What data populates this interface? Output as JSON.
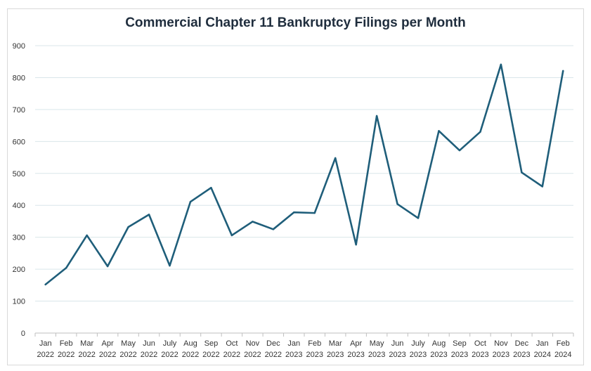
{
  "chart_data": {
    "type": "line",
    "title": "Commercial Chapter 11 Bankruptcy Filings per Month",
    "xlabel": "",
    "ylabel": "",
    "ylim": [
      0,
      900
    ],
    "yticks": [
      0,
      100,
      200,
      300,
      400,
      500,
      600,
      700,
      800,
      900
    ],
    "grid": true,
    "legend": "none",
    "line_color": "#1f5e7a",
    "categories": [
      [
        "Jan",
        "2022"
      ],
      [
        "Feb",
        "2022"
      ],
      [
        "Mar",
        "2022"
      ],
      [
        "Apr",
        "2022"
      ],
      [
        "May",
        "2022"
      ],
      [
        "Jun",
        "2022"
      ],
      [
        "July",
        "2022"
      ],
      [
        "Aug",
        "2022"
      ],
      [
        "Sep",
        "2022"
      ],
      [
        "Oct",
        "2022"
      ],
      [
        "Nov",
        "2022"
      ],
      [
        "Dec",
        "2022"
      ],
      [
        "Jan",
        "2023"
      ],
      [
        "Feb",
        "2023"
      ],
      [
        "Mar",
        "2023"
      ],
      [
        "Apr",
        "2023"
      ],
      [
        "May",
        "2023"
      ],
      [
        "Jun",
        "2023"
      ],
      [
        "July",
        "2023"
      ],
      [
        "Aug",
        "2023"
      ],
      [
        "Sep",
        "2023"
      ],
      [
        "Oct",
        "2023"
      ],
      [
        "Nov",
        "2023"
      ],
      [
        "Dec",
        "2023"
      ],
      [
        "Jan",
        "2024"
      ],
      [
        "Feb",
        "2024"
      ]
    ],
    "values": [
      152,
      204,
      306,
      209,
      332,
      371,
      211,
      411,
      455,
      306,
      349,
      325,
      378,
      376,
      548,
      277,
      680,
      404,
      360,
      633,
      572,
      630,
      841,
      503,
      459,
      821
    ]
  }
}
